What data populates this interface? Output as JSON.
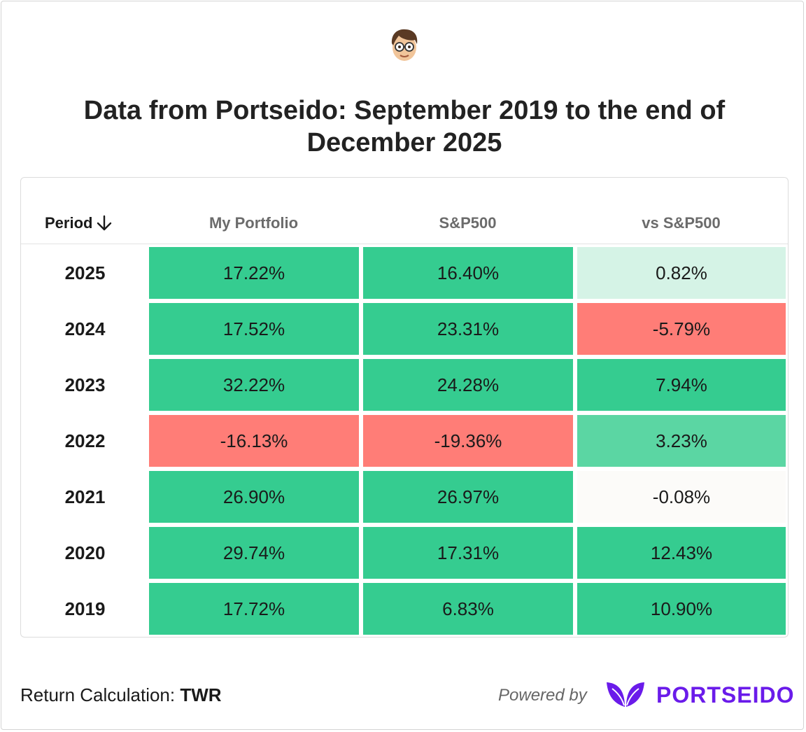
{
  "title": "Data from Portseido: September 2019 to the end of December 2025",
  "table": {
    "headers": {
      "period": "Period",
      "col1": "My Portfolio",
      "col2": "S&P500",
      "col3": "vs S&P500"
    },
    "rows": [
      {
        "period": "2025",
        "portfolio": "17.22%",
        "sp500": "16.40%",
        "vs": "0.82%"
      },
      {
        "period": "2024",
        "portfolio": "17.52%",
        "sp500": "23.31%",
        "vs": "-5.79%"
      },
      {
        "period": "2023",
        "portfolio": "32.22%",
        "sp500": "24.28%",
        "vs": "7.94%"
      },
      {
        "period": "2022",
        "portfolio": "-16.13%",
        "sp500": "-19.36%",
        "vs": "3.23%"
      },
      {
        "period": "2021",
        "portfolio": "26.90%",
        "sp500": "26.97%",
        "vs": "-0.08%"
      },
      {
        "period": "2020",
        "portfolio": "29.74%",
        "sp500": "17.31%",
        "vs": "12.43%"
      },
      {
        "period": "2019",
        "portfolio": "17.72%",
        "sp500": "6.83%",
        "vs": "10.90%"
      }
    ]
  },
  "colors": {
    "strong_green": "#35cc90",
    "mid_green": "#5bd6a3",
    "light_green": "#d5f3e6",
    "neutral": "#fcfbf9",
    "red": "#ff7d77",
    "brand": "#6a1bea"
  },
  "footer": {
    "calc_label": "Return Calculation:",
    "calc_value": "TWR",
    "powered_by": "Powered by",
    "brand": "PORTSEIDO"
  },
  "icons": {
    "avatar": "avatar-memoji",
    "sort": "arrow-down-icon",
    "brand_logo": "leaf-logo-icon"
  }
}
